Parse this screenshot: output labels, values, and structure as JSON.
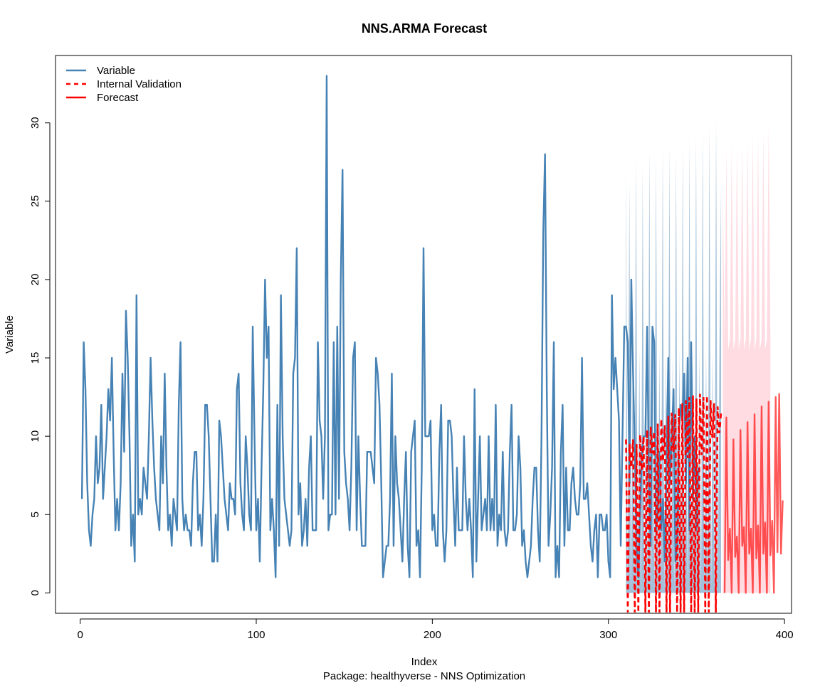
{
  "chart_data": {
    "type": "line",
    "title": "NNS.ARMA Forecast",
    "xlabel": "Index",
    "ylabel": "Variable",
    "subtitle": "Package: healthyverse - NNS Optimization",
    "xlim": [
      -14,
      404
    ],
    "ylim": [
      -1.3,
      34.3
    ],
    "x_ticks": [
      0,
      100,
      200,
      300,
      400
    ],
    "y_ticks": [
      0,
      5,
      10,
      15,
      20,
      25,
      30
    ],
    "legend_position": "top-left",
    "legend": [
      {
        "label": "Variable",
        "color": "#4682b4",
        "style": "solid"
      },
      {
        "label": "Internal Validation",
        "color": "#ff0000",
        "style": "dashed"
      },
      {
        "label": "Forecast",
        "color": "#ff0000",
        "style": "solid"
      }
    ],
    "series": [
      {
        "name": "Variable",
        "color": "#4682b4",
        "x_start": 1,
        "values": [
          6,
          16,
          13,
          7,
          4,
          3,
          5,
          6,
          10,
          7,
          8,
          12,
          6,
          8,
          10,
          13,
          11,
          15,
          9,
          4,
          6,
          4,
          7,
          14,
          9,
          18,
          15,
          10,
          3,
          5,
          2,
          19,
          5,
          6,
          5,
          8,
          7,
          6,
          10,
          15,
          11,
          8,
          6,
          5,
          4,
          10,
          7,
          14,
          8,
          4,
          5,
          3,
          6,
          5,
          4,
          12,
          16,
          6,
          4,
          5,
          4,
          4,
          3,
          7,
          9,
          9,
          4,
          5,
          3,
          6,
          12,
          12,
          10,
          6,
          2,
          2,
          5,
          2,
          11,
          10,
          8,
          6,
          5,
          4,
          7,
          6,
          6,
          5,
          13,
          14,
          7,
          5,
          4,
          10,
          8,
          5,
          4,
          17,
          10,
          4,
          6,
          2,
          8,
          13,
          20,
          15,
          17,
          4,
          6,
          4,
          1,
          12,
          3,
          19,
          10,
          6,
          5,
          4,
          3,
          4,
          14,
          15,
          22,
          5,
          7,
          3,
          4,
          6,
          3,
          8,
          10,
          4,
          4,
          4,
          16,
          11,
          10,
          6,
          10,
          33,
          4,
          5,
          5,
          16,
          5,
          17,
          6,
          20,
          27,
          9,
          7,
          6,
          4,
          8,
          15,
          16,
          4,
          10,
          6,
          3,
          3,
          3,
          9,
          9,
          9,
          8,
          7,
          15,
          14,
          12,
          7,
          1,
          2,
          3,
          3,
          6,
          14,
          3,
          10,
          7,
          6,
          4,
          2,
          6,
          9,
          3,
          1,
          9,
          10,
          11,
          3,
          4,
          1,
          8,
          22,
          10,
          10,
          10,
          11,
          4,
          5,
          3,
          3,
          9,
          12,
          4,
          2,
          4,
          11,
          11,
          10,
          6,
          3,
          8,
          4,
          4,
          4,
          10,
          6,
          4,
          6,
          4,
          1,
          13,
          2,
          6,
          10,
          4,
          5,
          6,
          4,
          10,
          4,
          6,
          4,
          12,
          3,
          5,
          4,
          9,
          4,
          3,
          4,
          9,
          12,
          4,
          4,
          5,
          10,
          8,
          3,
          4,
          2,
          1,
          2,
          3,
          6,
          8,
          8,
          4,
          2,
          10,
          23,
          28,
          13,
          3,
          5,
          8,
          16,
          1,
          3,
          1,
          9,
          12,
          3,
          8,
          4,
          4,
          7,
          8,
          6,
          5,
          5,
          7,
          15,
          6,
          6,
          7,
          5,
          3,
          2,
          4,
          5,
          1,
          5,
          5,
          4,
          4,
          5,
          2,
          1,
          19,
          13,
          15,
          13,
          11,
          3,
          10,
          17,
          17,
          16,
          7,
          20,
          14,
          9,
          3,
          1,
          5,
          9,
          10,
          10,
          17,
          7,
          3,
          17,
          16,
          4,
          5,
          9,
          4,
          6,
          2,
          8,
          15,
          7,
          10,
          13,
          2,
          3,
          10,
          12,
          11,
          14,
          7,
          15,
          4,
          16,
          6,
          10,
          4,
          8
        ],
        "interval_band": {
          "x_range": [
            310,
            364
          ],
          "values": [
            27.2,
            0,
            26.3,
            0,
            15.5,
            0,
            27.8,
            0,
            15.5,
            0,
            27.2,
            0,
            15.5,
            0,
            28.3,
            0,
            15.5,
            0,
            27.8,
            0,
            15.5,
            0,
            28.4,
            0,
            15.5,
            0,
            28.5,
            0,
            15.5,
            0,
            28.1,
            0,
            15.5,
            0,
            28.6,
            0,
            15.5,
            0,
            28.9,
            0,
            15.5,
            0,
            29.2,
            0,
            15.5,
            0,
            29.6,
            0,
            15.5,
            0,
            29.8,
            0,
            15.5,
            0,
            30.2,
            0,
            15.5,
            26.0
          ],
          "color": "#4682b4",
          "opacity": 0.5
        }
      },
      {
        "name": "Internal Validation",
        "color": "#ff0000",
        "x_start": 310,
        "values": [
          9.8,
          -1.5,
          9.5,
          8.0,
          9.8,
          -1.5,
          9.5,
          -1.5,
          10.1,
          7.8,
          10.0,
          -1.5,
          10.4,
          -1.5,
          10.6,
          8.9,
          10.3,
          -1.5,
          10.8,
          -1.5,
          11.1,
          8.4,
          10.7,
          -1.5,
          11.3,
          -1.5,
          11.5,
          9.0,
          11.4,
          -1.5,
          11.8,
          -1.5,
          12.1,
          -1.5,
          12.3,
          8.6,
          12.5,
          -1.5,
          12.6,
          -1.5,
          12.4,
          -1.5,
          12.7,
          8.8,
          12.5,
          -1.5,
          12.6,
          -1.5,
          12.3,
          9.9,
          12.1,
          -1.5,
          11.9,
          10.2,
          11.5
        ]
      },
      {
        "name": "Forecast",
        "color": "#ff0000",
        "x_start": 366,
        "values": [
          0,
          11.2,
          2.1,
          4.1,
          0,
          9.8,
          2.3,
          3.6,
          0,
          10.4,
          3.0,
          4.2,
          0,
          10.9,
          2.5,
          4.1,
          0,
          11.4,
          2.2,
          4.3,
          0,
          11.9,
          2.5,
          4.5,
          0,
          12.2,
          2.4,
          4.6,
          0,
          12.5,
          2.6,
          12.7,
          2.5,
          5.9
        ],
        "interval_band": {
          "x_range": [
            365,
            392
          ],
          "values": [
            26.0,
            15.5,
            28.5,
            15.5,
            16.2,
            28.6,
            15.5,
            16.2,
            28.7,
            15.5,
            16.2,
            28.9,
            15.5,
            16.2,
            29.0,
            15.5,
            16.2,
            29.2,
            15.5,
            16.2,
            29.3,
            15.5,
            16.2,
            29.5,
            15.5,
            16.2,
            29.9,
            16.2
          ],
          "color": "#ffc0cb",
          "opacity": 0.55
        }
      }
    ]
  }
}
